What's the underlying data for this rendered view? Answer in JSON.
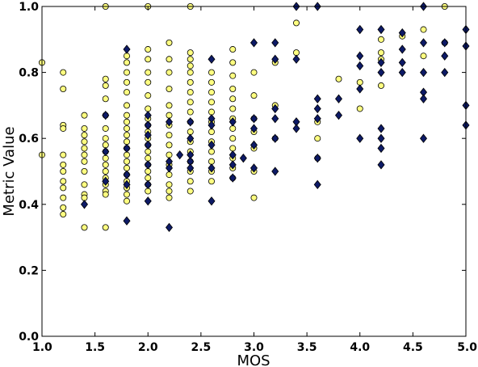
{
  "chart_data": {
    "type": "scatter",
    "title": "",
    "xlabel": "MOS",
    "ylabel": "Metric Value",
    "xlim": [
      1.0,
      5.0
    ],
    "ylim": [
      0.0,
      1.0
    ],
    "x_ticks": [
      "1.0",
      "1.5",
      "2.0",
      "2.5",
      "3.0",
      "3.5",
      "4.0",
      "4.5",
      "5.0"
    ],
    "y_ticks": [
      "0.0",
      "0.2",
      "0.4",
      "0.6",
      "0.8",
      "1.0"
    ],
    "grid": false,
    "legend": "none",
    "series": [
      {
        "marker": "circle",
        "color": "#ffff80",
        "edge_color": "#000000",
        "points": [
          [
            1.0,
            0.83
          ],
          [
            1.0,
            0.55
          ],
          [
            1.2,
            0.8
          ],
          [
            1.2,
            0.75
          ],
          [
            1.2,
            0.64
          ],
          [
            1.2,
            0.63
          ],
          [
            1.2,
            0.55
          ],
          [
            1.2,
            0.52
          ],
          [
            1.2,
            0.5
          ],
          [
            1.2,
            0.47
          ],
          [
            1.2,
            0.45
          ],
          [
            1.2,
            0.42
          ],
          [
            1.2,
            0.39
          ],
          [
            1.2,
            0.37
          ],
          [
            1.4,
            0.67
          ],
          [
            1.4,
            0.63
          ],
          [
            1.4,
            0.61
          ],
          [
            1.4,
            0.59
          ],
          [
            1.4,
            0.57
          ],
          [
            1.4,
            0.55
          ],
          [
            1.4,
            0.53
          ],
          [
            1.4,
            0.5
          ],
          [
            1.4,
            0.46
          ],
          [
            1.4,
            0.43
          ],
          [
            1.4,
            0.42
          ],
          [
            1.4,
            0.33
          ],
          [
            1.6,
            0.78
          ],
          [
            1.6,
            0.76
          ],
          [
            1.6,
            0.72
          ],
          [
            1.6,
            0.67
          ],
          [
            1.6,
            0.63
          ],
          [
            1.6,
            0.6
          ],
          [
            1.6,
            0.58
          ],
          [
            1.6,
            0.56
          ],
          [
            1.6,
            0.54
          ],
          [
            1.6,
            0.52
          ],
          [
            1.6,
            0.5
          ],
          [
            1.6,
            0.48
          ],
          [
            1.6,
            0.46
          ],
          [
            1.6,
            0.44
          ],
          [
            1.6,
            0.43
          ],
          [
            1.6,
            0.33
          ],
          [
            1.6,
            1.0
          ],
          [
            1.8,
            0.85
          ],
          [
            1.8,
            0.83
          ],
          [
            1.8,
            0.8
          ],
          [
            1.8,
            0.77
          ],
          [
            1.8,
            0.74
          ],
          [
            1.8,
            0.7
          ],
          [
            1.8,
            0.67
          ],
          [
            1.8,
            0.65
          ],
          [
            1.8,
            0.63
          ],
          [
            1.8,
            0.61
          ],
          [
            1.8,
            0.59
          ],
          [
            1.8,
            0.57
          ],
          [
            1.8,
            0.55
          ],
          [
            1.8,
            0.53
          ],
          [
            1.8,
            0.51
          ],
          [
            1.8,
            0.49
          ],
          [
            1.8,
            0.47
          ],
          [
            1.8,
            0.45
          ],
          [
            1.8,
            0.43
          ],
          [
            1.8,
            0.41
          ],
          [
            2.0,
            0.87
          ],
          [
            2.0,
            0.84
          ],
          [
            2.0,
            0.8
          ],
          [
            2.0,
            0.77
          ],
          [
            2.0,
            0.73
          ],
          [
            2.0,
            0.69
          ],
          [
            2.0,
            0.66
          ],
          [
            2.0,
            0.64
          ],
          [
            2.0,
            0.62
          ],
          [
            2.0,
            0.6
          ],
          [
            2.0,
            0.58
          ],
          [
            2.0,
            0.56
          ],
          [
            2.0,
            0.54
          ],
          [
            2.0,
            0.52
          ],
          [
            2.0,
            0.5
          ],
          [
            2.0,
            0.48
          ],
          [
            2.0,
            0.46
          ],
          [
            2.0,
            0.44
          ],
          [
            2.0,
            1.0
          ],
          [
            2.2,
            0.89
          ],
          [
            2.2,
            0.84
          ],
          [
            2.2,
            0.8
          ],
          [
            2.2,
            0.75
          ],
          [
            2.2,
            0.7
          ],
          [
            2.2,
            0.67
          ],
          [
            2.2,
            0.64
          ],
          [
            2.2,
            0.61
          ],
          [
            2.2,
            0.58
          ],
          [
            2.2,
            0.55
          ],
          [
            2.2,
            0.52
          ],
          [
            2.2,
            0.49
          ],
          [
            2.2,
            0.46
          ],
          [
            2.2,
            0.44
          ],
          [
            2.2,
            0.42
          ],
          [
            2.4,
            0.86
          ],
          [
            2.4,
            0.84
          ],
          [
            2.4,
            0.82
          ],
          [
            2.4,
            0.8
          ],
          [
            2.4,
            0.77
          ],
          [
            2.4,
            0.74
          ],
          [
            2.4,
            0.71
          ],
          [
            2.4,
            0.68
          ],
          [
            2.4,
            0.65
          ],
          [
            2.4,
            0.62
          ],
          [
            2.4,
            0.59
          ],
          [
            2.4,
            0.56
          ],
          [
            2.4,
            0.53
          ],
          [
            2.4,
            0.5
          ],
          [
            2.4,
            0.47
          ],
          [
            2.4,
            0.44
          ],
          [
            2.4,
            1.0
          ],
          [
            2.6,
            0.8
          ],
          [
            2.6,
            0.77
          ],
          [
            2.6,
            0.74
          ],
          [
            2.6,
            0.71
          ],
          [
            2.6,
            0.68
          ],
          [
            2.6,
            0.65
          ],
          [
            2.6,
            0.62
          ],
          [
            2.6,
            0.59
          ],
          [
            2.6,
            0.56
          ],
          [
            2.6,
            0.53
          ],
          [
            2.6,
            0.5
          ],
          [
            2.6,
            0.47
          ],
          [
            2.8,
            0.87
          ],
          [
            2.8,
            0.83
          ],
          [
            2.8,
            0.79
          ],
          [
            2.8,
            0.75
          ],
          [
            2.8,
            0.72
          ],
          [
            2.8,
            0.69
          ],
          [
            2.8,
            0.66
          ],
          [
            2.8,
            0.63
          ],
          [
            2.8,
            0.6
          ],
          [
            2.8,
            0.57
          ],
          [
            2.8,
            0.54
          ],
          [
            2.8,
            0.51
          ],
          [
            2.8,
            0.48
          ],
          [
            3.0,
            0.8
          ],
          [
            3.0,
            0.73
          ],
          [
            3.0,
            0.66
          ],
          [
            3.0,
            0.62
          ],
          [
            3.0,
            0.57
          ],
          [
            3.0,
            0.5
          ],
          [
            3.0,
            0.42
          ],
          [
            3.2,
            0.83
          ],
          [
            3.2,
            0.7
          ],
          [
            3.2,
            0.6
          ],
          [
            3.4,
            0.95
          ],
          [
            3.4,
            0.86
          ],
          [
            3.6,
            0.65
          ],
          [
            3.6,
            0.6
          ],
          [
            3.6,
            0.54
          ],
          [
            3.8,
            0.78
          ],
          [
            4.0,
            0.77
          ],
          [
            4.0,
            0.69
          ],
          [
            4.2,
            0.9
          ],
          [
            4.2,
            0.86
          ],
          [
            4.2,
            0.84
          ],
          [
            4.2,
            0.76
          ],
          [
            4.4,
            0.91
          ],
          [
            4.6,
            0.93
          ],
          [
            4.6,
            0.85
          ],
          [
            4.8,
            0.89
          ],
          [
            4.8,
            1.0
          ]
        ]
      },
      {
        "marker": "diamond",
        "color": "#0d1a66",
        "edge_color": "#000000",
        "points": [
          [
            1.4,
            0.4
          ],
          [
            1.6,
            0.67
          ],
          [
            1.6,
            0.56
          ],
          [
            1.6,
            0.47
          ],
          [
            1.8,
            0.87
          ],
          [
            1.8,
            0.57
          ],
          [
            1.8,
            0.49
          ],
          [
            1.8,
            0.46
          ],
          [
            1.8,
            0.35
          ],
          [
            2.0,
            0.67
          ],
          [
            2.0,
            0.64
          ],
          [
            2.0,
            0.61
          ],
          [
            2.0,
            0.58
          ],
          [
            2.0,
            0.52
          ],
          [
            2.0,
            0.46
          ],
          [
            2.0,
            0.41
          ],
          [
            2.2,
            0.65
          ],
          [
            2.2,
            0.53
          ],
          [
            2.2,
            0.51
          ],
          [
            2.2,
            0.33
          ],
          [
            2.3,
            0.55
          ],
          [
            2.4,
            0.65
          ],
          [
            2.4,
            0.6
          ],
          [
            2.4,
            0.55
          ],
          [
            2.4,
            0.53
          ],
          [
            2.4,
            0.51
          ],
          [
            2.6,
            0.84
          ],
          [
            2.6,
            0.66
          ],
          [
            2.6,
            0.64
          ],
          [
            2.6,
            0.58
          ],
          [
            2.6,
            0.51
          ],
          [
            2.6,
            0.41
          ],
          [
            2.8,
            0.65
          ],
          [
            2.8,
            0.55
          ],
          [
            2.8,
            0.52
          ],
          [
            2.8,
            0.48
          ],
          [
            2.9,
            0.54
          ],
          [
            3.0,
            0.89
          ],
          [
            3.0,
            0.66
          ],
          [
            3.0,
            0.63
          ],
          [
            3.0,
            0.58
          ],
          [
            3.0,
            0.51
          ],
          [
            3.2,
            0.89
          ],
          [
            3.2,
            0.84
          ],
          [
            3.2,
            0.69
          ],
          [
            3.2,
            0.66
          ],
          [
            3.2,
            0.6
          ],
          [
            3.2,
            0.5
          ],
          [
            3.4,
            1.0
          ],
          [
            3.4,
            0.84
          ],
          [
            3.4,
            0.65
          ],
          [
            3.4,
            0.63
          ],
          [
            3.6,
            1.0
          ],
          [
            3.6,
            0.72
          ],
          [
            3.6,
            0.69
          ],
          [
            3.6,
            0.66
          ],
          [
            3.6,
            0.54
          ],
          [
            3.6,
            0.46
          ],
          [
            3.8,
            0.72
          ],
          [
            3.8,
            0.67
          ],
          [
            4.0,
            0.93
          ],
          [
            4.0,
            0.85
          ],
          [
            4.0,
            0.82
          ],
          [
            4.0,
            0.75
          ],
          [
            4.0,
            0.6
          ],
          [
            4.2,
            0.93
          ],
          [
            4.2,
            0.83
          ],
          [
            4.2,
            0.8
          ],
          [
            4.2,
            0.63
          ],
          [
            4.2,
            0.6
          ],
          [
            4.2,
            0.57
          ],
          [
            4.2,
            0.52
          ],
          [
            4.4,
            0.92
          ],
          [
            4.4,
            0.87
          ],
          [
            4.4,
            0.83
          ],
          [
            4.4,
            0.8
          ],
          [
            4.6,
            1.0
          ],
          [
            4.6,
            0.89
          ],
          [
            4.6,
            0.8
          ],
          [
            4.6,
            0.74
          ],
          [
            4.6,
            0.72
          ],
          [
            4.6,
            0.6
          ],
          [
            4.8,
            0.89
          ],
          [
            4.8,
            0.85
          ],
          [
            4.8,
            0.8
          ],
          [
            5.0,
            0.93
          ],
          [
            5.0,
            0.88
          ],
          [
            5.0,
            0.7
          ],
          [
            5.0,
            0.64
          ]
        ]
      }
    ]
  }
}
